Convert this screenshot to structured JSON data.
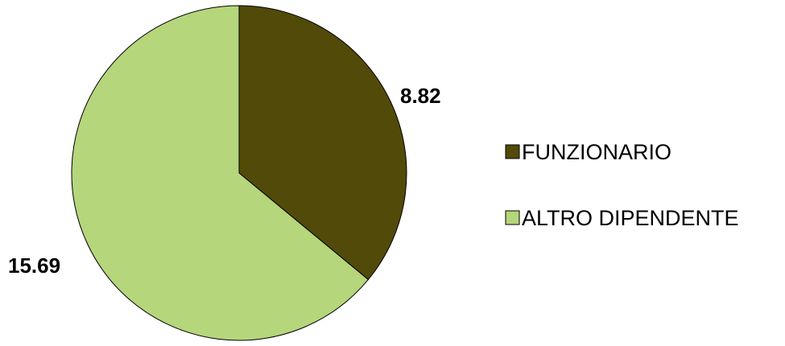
{
  "chart_data": {
    "type": "pie",
    "title": "",
    "legend_position": "right",
    "slices": [
      {
        "name": "FUNZIONARIO",
        "value": 8.82,
        "label": "8.82",
        "color": "#524a08"
      },
      {
        "name": "ALTRO DIPENDENTE",
        "value": 15.69,
        "label": "15.69",
        "color": "#b5d67b"
      }
    ],
    "legend": [
      "FUNZIONARIO",
      "ALTRO DIPENDENTE"
    ]
  }
}
